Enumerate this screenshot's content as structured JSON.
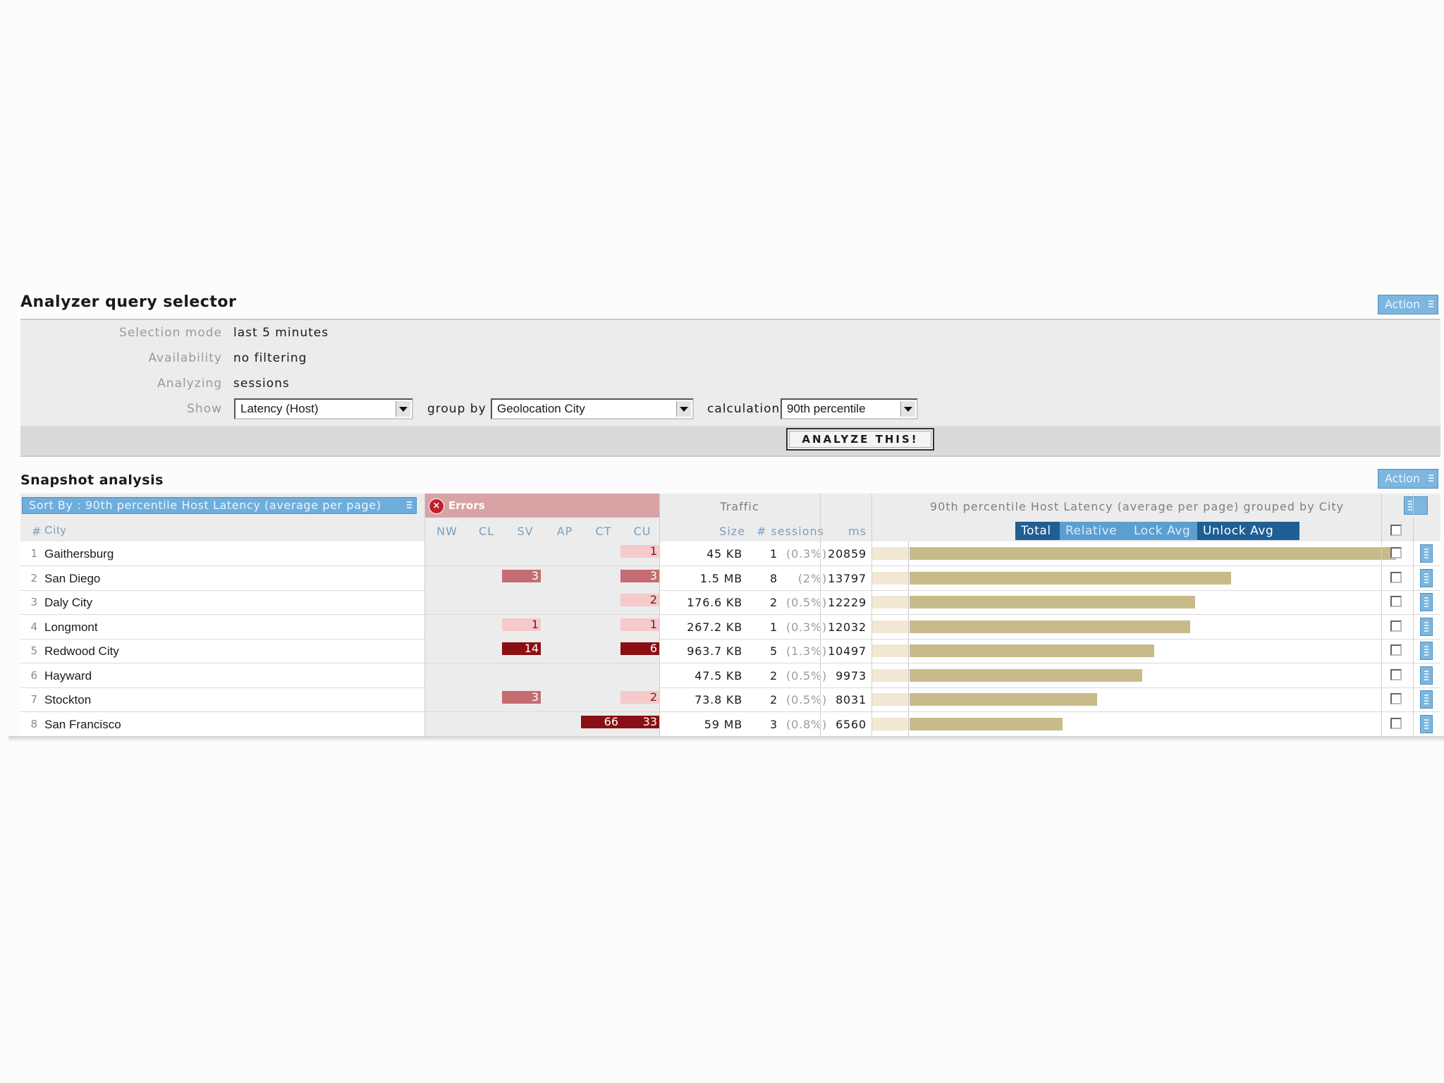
{
  "query_selector": {
    "title": "Analyzer query selector",
    "action_label": "Action",
    "fields": [
      {
        "label": "Selection mode",
        "value": "last 5 minutes"
      },
      {
        "label": "Availability",
        "value": "no filtering"
      },
      {
        "label": "Analyzing",
        "value": "sessions"
      }
    ],
    "show_label": "Show",
    "show_value": "Latency (Host)",
    "group_by_label": "group by",
    "group_by_value": "Geolocation City",
    "calculation_label": "calculation",
    "calculation_value": "90th percentile",
    "analyze_button": "ANALYZE THIS!"
  },
  "snapshot": {
    "title": "Snapshot analysis",
    "action_label": "Action",
    "sort_label": "Sort By : 90th percentile Host Latency (average per page)",
    "errors_label": "Errors",
    "traffic_label": "Traffic",
    "chart_title": "90th percentile Host Latency (average per page) grouped by City",
    "columns": {
      "hash": "#",
      "city": "City",
      "errors": [
        "NW",
        "CL",
        "SV",
        "AP",
        "CT",
        "CU"
      ],
      "size": "Size",
      "sessions": "# sessions",
      "ms": "ms"
    },
    "view_buttons": [
      "Total",
      "Relative",
      "Lock Avg",
      "Unlock Avg"
    ],
    "colors": {
      "accent": "#6eaedc",
      "dark_button": "#1f5f93",
      "bar": "#c8bb8b",
      "error_light": "#f6c9cb",
      "error_mid": "#c56d72",
      "error_dark": "#8a0f14"
    },
    "rows": [
      {
        "n": "1",
        "city": "Gaithersburg",
        "sv": "",
        "ct": "",
        "cu": "1",
        "size": "45 KB",
        "sessions": "1",
        "pct": "(0.3%)",
        "ms": "20859"
      },
      {
        "n": "2",
        "city": "San Diego",
        "sv": "3",
        "ct": "",
        "cu": "3",
        "size": "1.5 MB",
        "sessions": "8",
        "pct": "(2%)",
        "ms": "13797"
      },
      {
        "n": "3",
        "city": "Daly City",
        "sv": "",
        "ct": "",
        "cu": "2",
        "size": "176.6 KB",
        "sessions": "2",
        "pct": "(0.5%)",
        "ms": "12229"
      },
      {
        "n": "4",
        "city": "Longmont",
        "sv": "1",
        "ct": "",
        "cu": "1",
        "size": "267.2 KB",
        "sessions": "1",
        "pct": "(0.3%)",
        "ms": "12032"
      },
      {
        "n": "5",
        "city": "Redwood City",
        "sv": "14",
        "ct": "",
        "cu": "6",
        "size": "963.7 KB",
        "sessions": "5",
        "pct": "(1.3%)",
        "ms": "10497"
      },
      {
        "n": "6",
        "city": "Hayward",
        "sv": "",
        "ct": "",
        "cu": "",
        "size": "47.5 KB",
        "sessions": "2",
        "pct": "(0.5%)",
        "ms": "9973"
      },
      {
        "n": "7",
        "city": "Stockton",
        "sv": "3",
        "ct": "",
        "cu": "2",
        "size": "73.8 KB",
        "sessions": "2",
        "pct": "(0.5%)",
        "ms": "8031"
      },
      {
        "n": "8",
        "city": "San Francisco",
        "sv": "",
        "ct": "66",
        "cu": "33",
        "size": "59 MB",
        "sessions": "3",
        "pct": "(0.8%)",
        "ms": "6560"
      }
    ]
  }
}
